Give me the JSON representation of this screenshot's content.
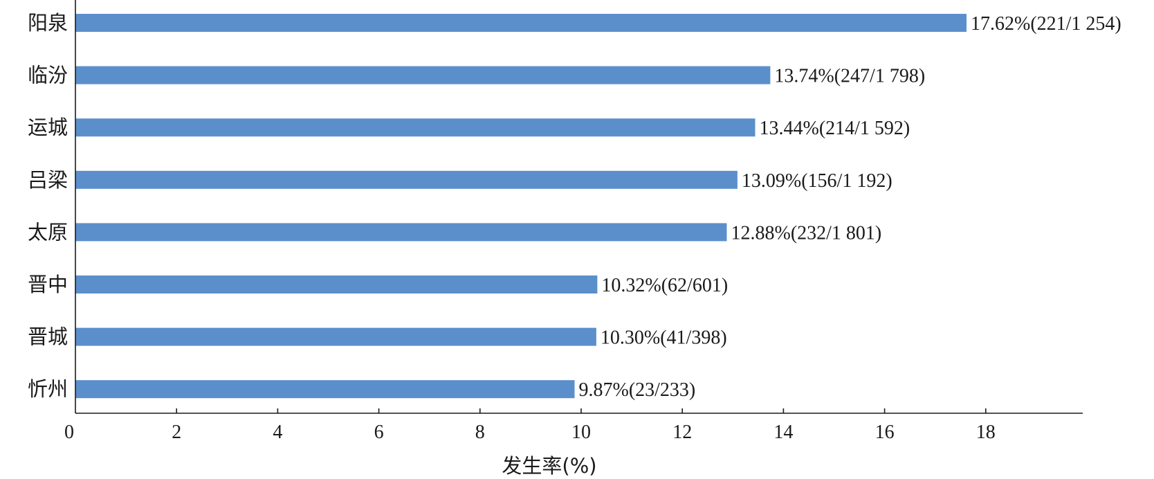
{
  "chart_data": {
    "type": "bar",
    "orientation": "horizontal",
    "title": "",
    "xlabel": "发生率(%)",
    "ylabel": "",
    "xlim": [
      0,
      20
    ],
    "xticks": [
      0,
      2,
      4,
      6,
      8,
      10,
      12,
      14,
      16,
      18
    ],
    "grid": false,
    "color": "#5b8fcb",
    "categories": [
      "阳泉",
      "临汾",
      "运城",
      "吕梁",
      "太原",
      "晋中",
      "晋城",
      "忻州"
    ],
    "values": [
      17.62,
      13.74,
      13.44,
      13.09,
      12.88,
      10.32,
      10.3,
      9.87
    ],
    "data_labels": [
      "17.62%(221/1 254)",
      "13.74%(247/1 798)",
      "13.44%(214/1 592)",
      "13.09%(156/1 192)",
      "12.88%(232/1 801)",
      "10.32%(62/601)",
      "10.30%(41/398)",
      "9.87%(23/233)"
    ]
  }
}
